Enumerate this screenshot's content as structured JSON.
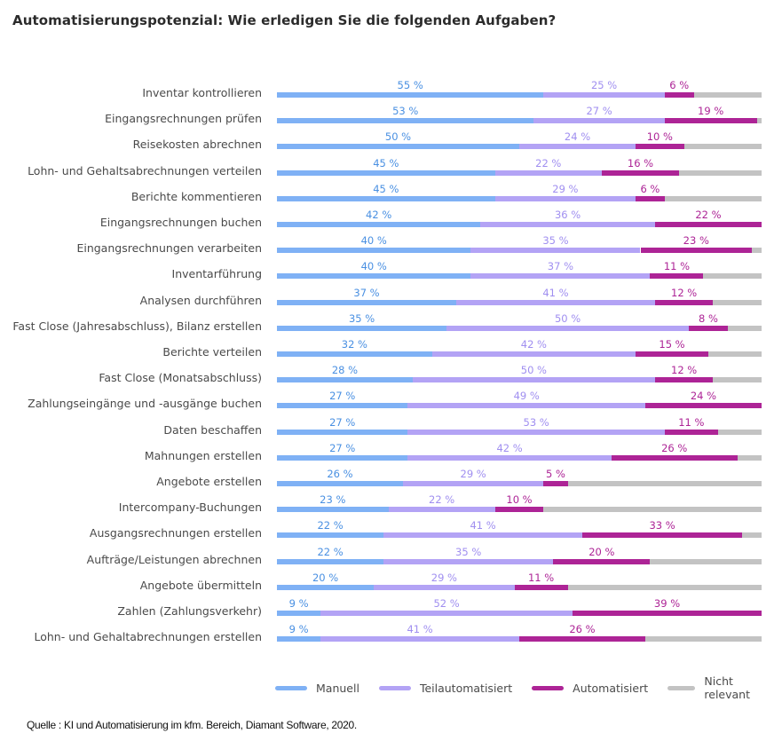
{
  "chart_data": {
    "type": "bar",
    "orientation": "horizontal",
    "stacked": true,
    "title": "Automatisierungspotenzial: Wie erledigen Sie die folgenden Aufgaben?",
    "xlim": [
      0,
      100
    ],
    "unit": "%",
    "categories": [
      "Inventar kontrollieren",
      "Eingangsrechnungen prüfen",
      "Reisekosten abrechnen",
      "Lohn- und Gehaltsabrechnungen verteilen",
      "Berichte kommentieren",
      "Eingangsrechnungen buchen",
      "Eingangsrechnungen verarbeiten",
      "Inventarführung",
      "Analysen durchführen",
      "Fast Close (Jahresabschluss), Bilanz erstellen",
      "Berichte verteilen",
      "Fast Close (Monatsabschluss)",
      "Zahlungseingänge und -ausgänge buchen",
      "Daten beschaffen",
      "Mahnungen erstellen",
      "Angebote erstellen",
      "Intercompany-Buchungen",
      "Ausgangsrechnungen erstellen",
      "Aufträge/Leistungen abrechnen",
      "Angebote übermitteln",
      "Zahlen (Zahlungsverkehr)",
      "Lohn- und Gehaltabrechnungen erstellen"
    ],
    "series": [
      {
        "name": "Manuell",
        "color": "#7fb1f5",
        "label_color": "#4a90e2",
        "values": [
          55,
          53,
          50,
          45,
          45,
          42,
          40,
          40,
          37,
          35,
          32,
          28,
          27,
          27,
          27,
          26,
          23,
          22,
          22,
          20,
          9,
          9
        ]
      },
      {
        "name": "Teilautomatisiert",
        "color": "#b3a3f5",
        "label_color": "#a08ff0",
        "values": [
          25,
          27,
          24,
          22,
          29,
          36,
          35,
          37,
          41,
          50,
          42,
          50,
          49,
          53,
          42,
          29,
          22,
          41,
          35,
          29,
          52,
          41
        ]
      },
      {
        "name": "Automatisiert",
        "color": "#ad2496",
        "label_color": "#ad2496",
        "values": [
          6,
          19,
          10,
          16,
          6,
          22,
          23,
          11,
          12,
          8,
          15,
          12,
          24,
          11,
          26,
          5,
          10,
          33,
          20,
          11,
          39,
          26
        ]
      },
      {
        "name": "Nicht relevant",
        "color": "#c3c3c3",
        "label_color": "#999999",
        "values": [
          14,
          1,
          16,
          17,
          20,
          0,
          2,
          12,
          10,
          7,
          11,
          10,
          0,
          9,
          5,
          40,
          45,
          4,
          23,
          40,
          0,
          24
        ]
      }
    ],
    "labeled_series": [
      0,
      1,
      2
    ],
    "legend_position": "bottom-right"
  },
  "legend": {
    "items": [
      {
        "label": "Manuell",
        "color": "#7fb1f5"
      },
      {
        "label": "Teilautomatisiert",
        "color": "#b3a3f5"
      },
      {
        "label": "Automatisiert",
        "color": "#ad2496"
      },
      {
        "label": "Nicht relevant",
        "color": "#c3c3c3"
      }
    ]
  },
  "source": "Quelle : KI und Automatisierung im kfm. Bereich, Diamant Software, 2020."
}
